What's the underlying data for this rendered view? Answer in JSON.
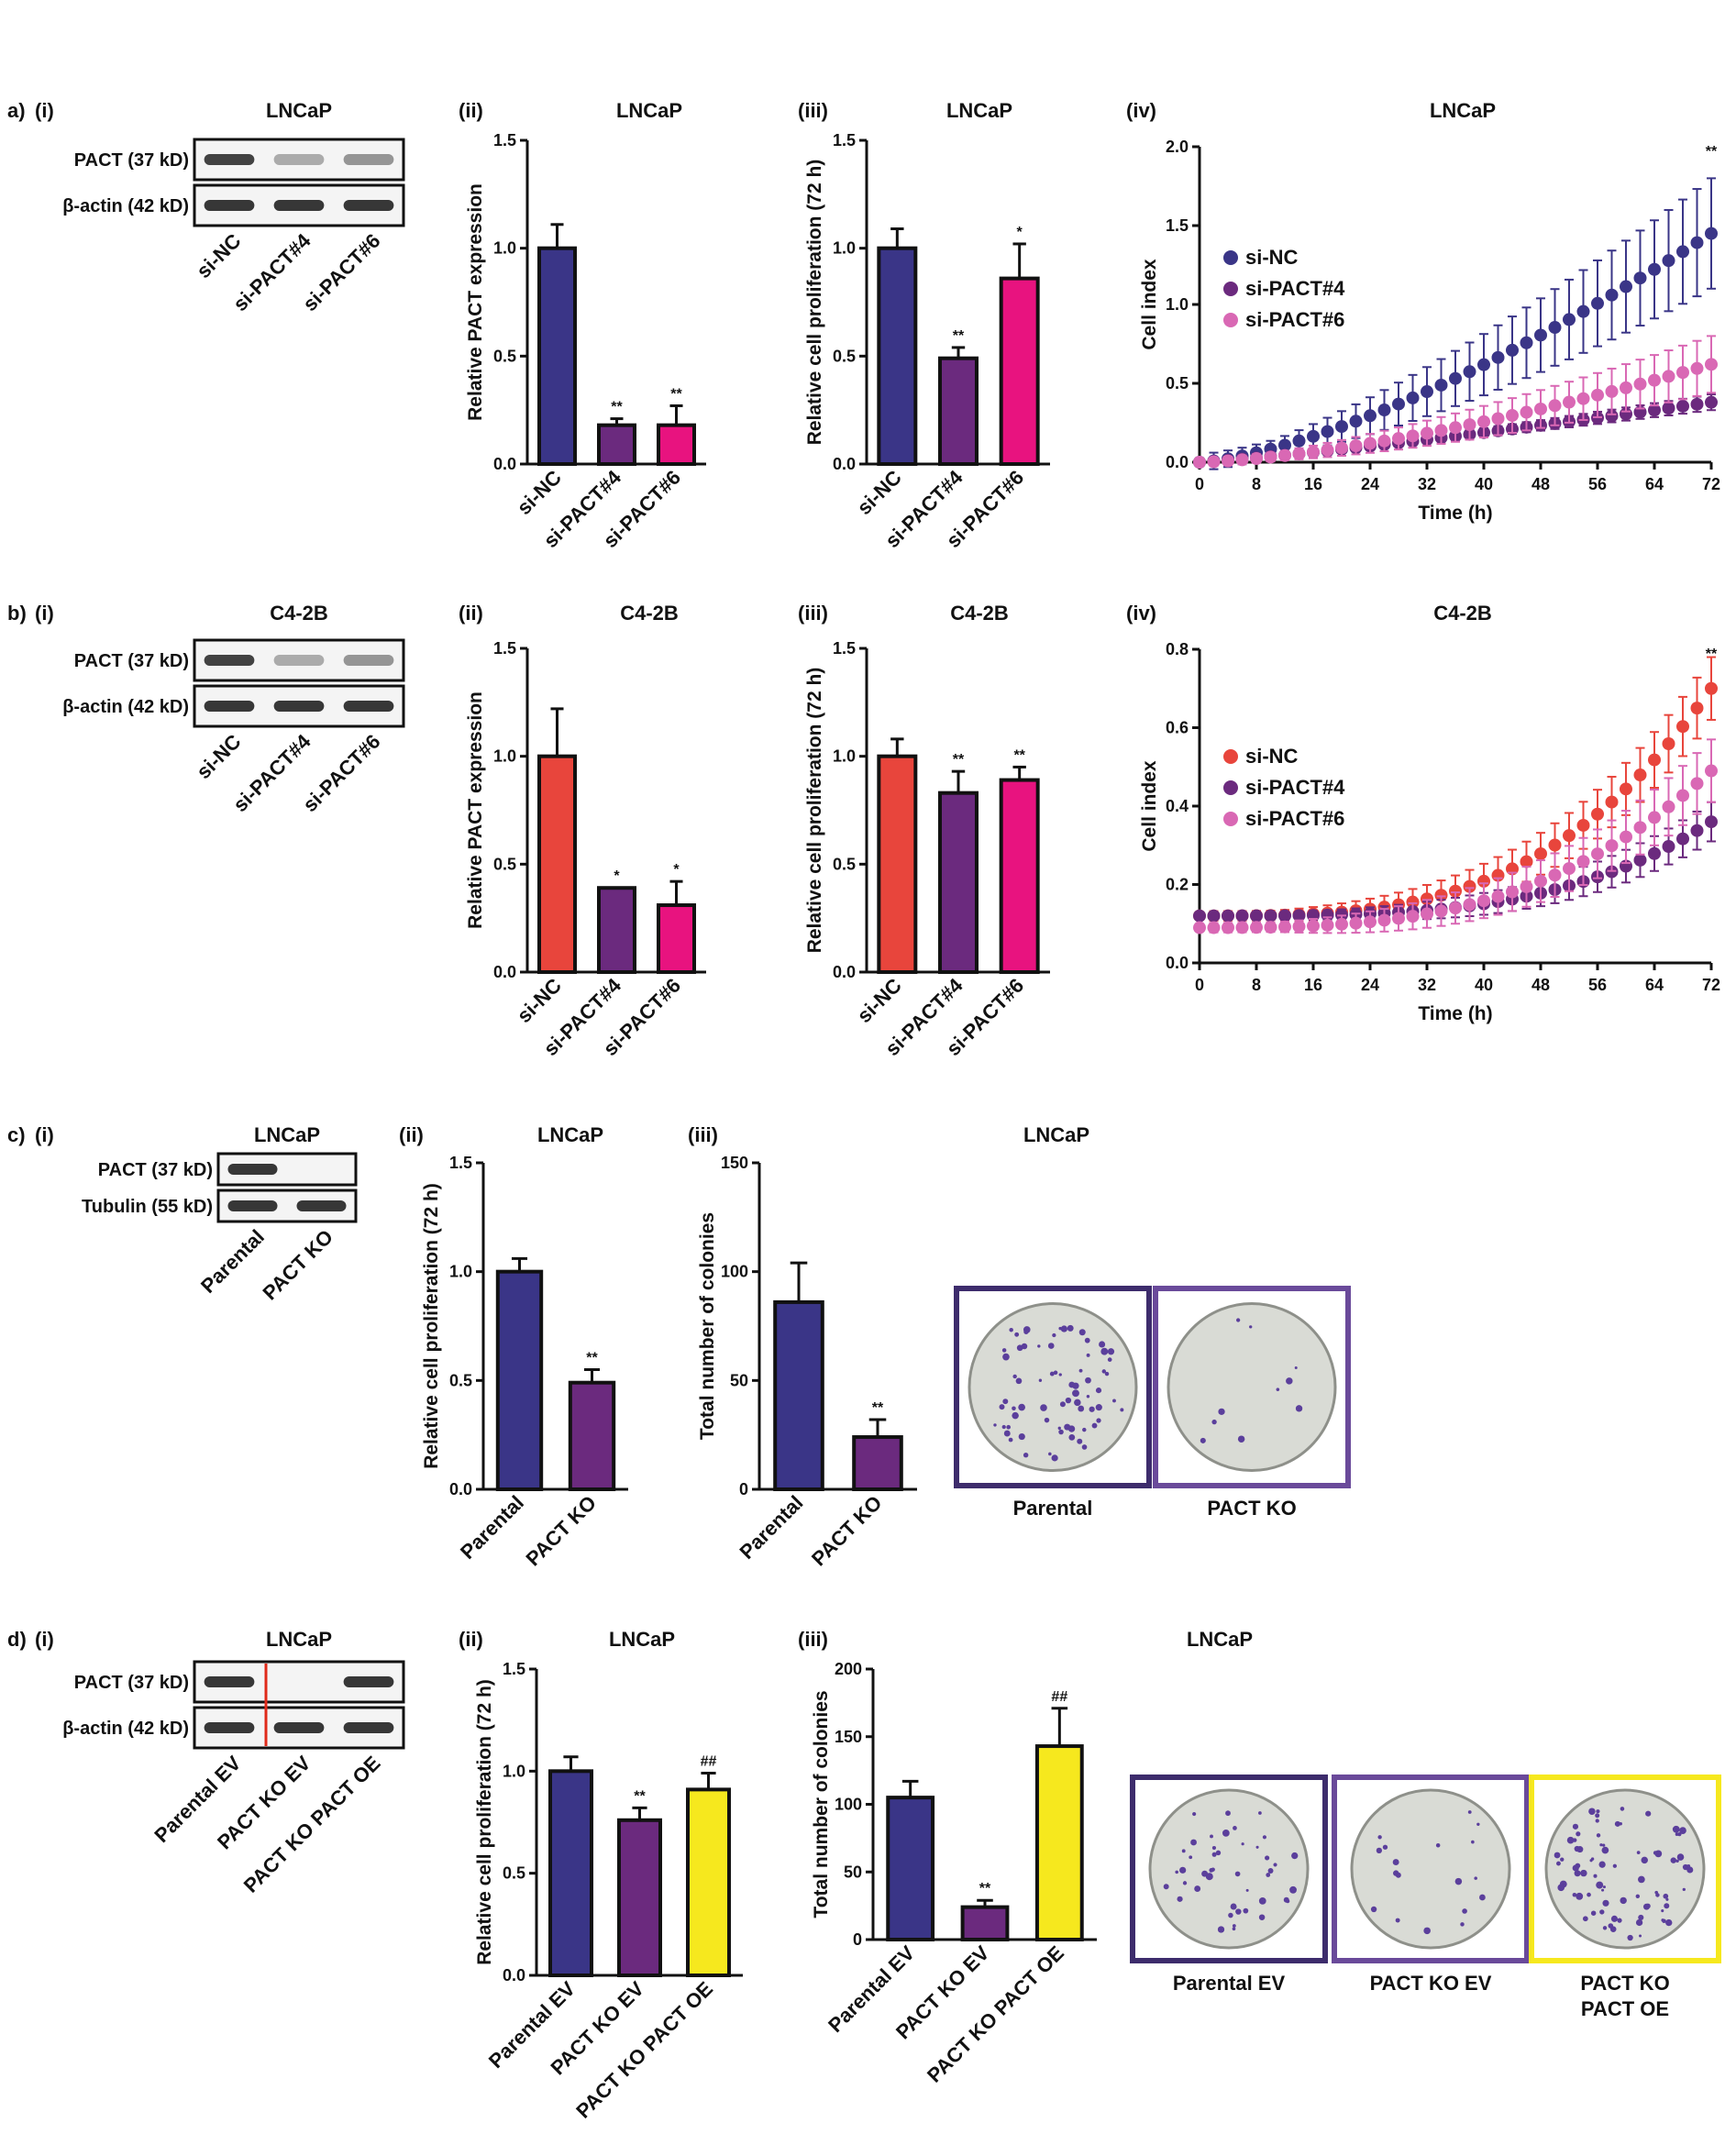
{
  "colors": {
    "navy": "#3a3587",
    "purple": "#6b2a7e",
    "magenta": "#e8137f",
    "red": "#e8453c",
    "pink": "#d968b4",
    "yellow": "#f6e81e",
    "box_purple": "#6a4a9a",
    "box_dark": "#3d2c6c",
    "box_yellow": "#f6e81e"
  },
  "panels": {
    "a": {
      "letter": "a)",
      "blot": {
        "tag": "(i)",
        "title": "LNCaP",
        "rows": [
          "PACT (37 kD)",
          "β-actin (42 kD)"
        ],
        "lanes": [
          "si-NC",
          "si-PACT#4",
          "si-PACT#6"
        ]
      },
      "ii": {
        "tag": "(ii)"
      },
      "iii": {
        "tag": "(iii)"
      },
      "iv": {
        "tag": "(iv)"
      }
    },
    "b": {
      "letter": "b)",
      "blot": {
        "tag": "(i)",
        "title": "C4-2B",
        "rows": [
          "PACT (37 kD)",
          "β-actin (42 kD)"
        ],
        "lanes": [
          "si-NC",
          "si-PACT#4",
          "si-PACT#6"
        ]
      },
      "ii": {
        "tag": "(ii)"
      },
      "iii": {
        "tag": "(iii)"
      },
      "iv": {
        "tag": "(iv)"
      }
    },
    "c": {
      "letter": "c)",
      "blot": {
        "tag": "(i)",
        "title": "LNCaP",
        "rows": [
          "PACT (37 kD)",
          "Tubulin (55 kD)"
        ],
        "lanes": [
          "Parental",
          "PACT KO"
        ]
      },
      "ii": {
        "tag": "(ii)"
      },
      "iii": {
        "tag": "(iii)"
      },
      "images": [
        "Parental",
        "PACT KO"
      ]
    },
    "d": {
      "letter": "d)",
      "blot": {
        "tag": "(i)",
        "title": "LNCaP",
        "rows": [
          "PACT (37 kD)",
          "β-actin (42 kD)"
        ],
        "lanes": [
          "Parental EV",
          "PACT KO EV",
          "PACT KO PACT OE"
        ]
      },
      "ii": {
        "tag": "(ii)"
      },
      "iii": {
        "tag": "(iii)"
      },
      "images": [
        "Parental EV",
        "PACT KO EV",
        "PACT KO\nPACT OE"
      ]
    }
  },
  "chart_data": [
    {
      "id": "a-ii",
      "type": "bar",
      "title": "LNCaP",
      "categories": [
        "si-NC",
        "si-PACT#4",
        "si-PACT#6"
      ],
      "values": [
        1.0,
        0.18,
        0.18
      ],
      "errors": [
        0.11,
        0.03,
        0.09
      ],
      "significance": [
        "",
        "**",
        "**"
      ],
      "colors": [
        "#3a3587",
        "#6b2a7e",
        "#e8137f"
      ],
      "ylabel": "Relative PACT expression",
      "ylim": [
        0,
        1.5
      ],
      "yticks": [
        "0.0",
        "0.5",
        "1.0",
        "1.5"
      ]
    },
    {
      "id": "a-iii",
      "type": "bar",
      "title": "LNCaP",
      "categories": [
        "si-NC",
        "si-PACT#4",
        "si-PACT#6"
      ],
      "values": [
        1.0,
        0.49,
        0.86
      ],
      "errors": [
        0.09,
        0.05,
        0.16
      ],
      "significance": [
        "",
        "**",
        "*"
      ],
      "colors": [
        "#3a3587",
        "#6b2a7e",
        "#e8137f"
      ],
      "ylabel": "Relative cell proliferation (72 h)",
      "ylim": [
        0,
        1.5
      ],
      "yticks": [
        "0.0",
        "0.5",
        "1.0",
        "1.5"
      ]
    },
    {
      "id": "a-iv",
      "type": "scatter",
      "title": "LNCaP",
      "xlabel": "Time (h)",
      "ylabel": "Cell index",
      "xlim": [
        0,
        72
      ],
      "ylim": [
        0,
        2.0
      ],
      "xticks": [
        "0",
        "8",
        "16",
        "24",
        "32",
        "40",
        "48",
        "56",
        "64",
        "72"
      ],
      "yticks": [
        "0.0",
        "0.5",
        "1.0",
        "1.5",
        "2.0"
      ],
      "annotation": "**",
      "legend": [
        "si-NC",
        "si-PACT#4",
        "si-PACT#6"
      ],
      "series": [
        {
          "name": "si-NC",
          "color": "#3a3587",
          "start": 0.0,
          "end": 1.45,
          "exp": 1.45,
          "err_end": 0.35
        },
        {
          "name": "si-PACT#4",
          "color": "#6b2a7e",
          "start": 0.0,
          "end": 0.38,
          "exp": 1.2,
          "err_end": 0.05
        },
        {
          "name": "si-PACT#6",
          "color": "#d968b4",
          "start": 0.0,
          "end": 0.62,
          "exp": 1.5,
          "err_end": 0.18
        }
      ]
    },
    {
      "id": "b-ii",
      "type": "bar",
      "title": "C4-2B",
      "categories": [
        "si-NC",
        "si-PACT#4",
        "si-PACT#6"
      ],
      "values": [
        1.0,
        0.39,
        0.31
      ],
      "errors": [
        0.22,
        0.0,
        0.11
      ],
      "significance": [
        "",
        "*",
        "*"
      ],
      "colors": [
        "#e8453c",
        "#6b2a7e",
        "#e8137f"
      ],
      "ylabel": "Relative PACT expression",
      "ylim": [
        0,
        1.5
      ],
      "yticks": [
        "0.0",
        "0.5",
        "1.0",
        "1.5"
      ]
    },
    {
      "id": "b-iii",
      "type": "bar",
      "title": "C4-2B",
      "categories": [
        "si-NC",
        "si-PACT#4",
        "si-PACT#6"
      ],
      "values": [
        1.0,
        0.83,
        0.89
      ],
      "errors": [
        0.08,
        0.1,
        0.06
      ],
      "significance": [
        "",
        "**",
        "**"
      ],
      "colors": [
        "#e8453c",
        "#6b2a7e",
        "#e8137f"
      ],
      "ylabel": "Relative cell proliferation (72 h)",
      "ylim": [
        0,
        1.5
      ],
      "yticks": [
        "0.0",
        "0.5",
        "1.0",
        "1.5"
      ]
    },
    {
      "id": "b-iv",
      "type": "scatter",
      "title": "C4-2B",
      "xlabel": "Time (h)",
      "ylabel": "Cell index",
      "xlim": [
        0,
        72
      ],
      "ylim": [
        0,
        0.8
      ],
      "xticks": [
        "0",
        "8",
        "16",
        "24",
        "32",
        "40",
        "48",
        "56",
        "64",
        "72"
      ],
      "yticks": [
        "0.0",
        "0.2",
        "0.4",
        "0.6",
        "0.8"
      ],
      "annotation": "**",
      "legend": [
        "si-NC",
        "si-PACT#4",
        "si-PACT#6"
      ],
      "series": [
        {
          "name": "si-NC",
          "color": "#e8453c",
          "start": 0.12,
          "end": 0.7,
          "exp": 3.2,
          "err_end": 0.08
        },
        {
          "name": "si-PACT#4",
          "color": "#6b2a7e",
          "start": 0.12,
          "end": 0.36,
          "exp": 3.5,
          "err_end": 0.05
        },
        {
          "name": "si-PACT#6",
          "color": "#d968b4",
          "start": 0.09,
          "end": 0.49,
          "exp": 3.0,
          "err_end": 0.08
        }
      ]
    },
    {
      "id": "c-ii",
      "type": "bar",
      "title": "LNCaP",
      "categories": [
        "Parental",
        "PACT KO"
      ],
      "values": [
        1.0,
        0.49
      ],
      "errors": [
        0.06,
        0.06
      ],
      "significance": [
        "",
        "**"
      ],
      "colors": [
        "#3a3587",
        "#6b2a7e"
      ],
      "ylabel": "Relative cell proliferation (72 h)",
      "ylim": [
        0,
        1.5
      ],
      "yticks": [
        "0.0",
        "0.5",
        "1.0",
        "1.5"
      ]
    },
    {
      "id": "c-iii",
      "type": "bar",
      "title": "LNCaP",
      "categories": [
        "Parental",
        "PACT KO"
      ],
      "values": [
        86,
        24
      ],
      "errors": [
        18,
        8
      ],
      "significance": [
        "",
        "**"
      ],
      "colors": [
        "#3a3587",
        "#6b2a7e"
      ],
      "ylabel": "Total number of colonies",
      "ylim": [
        0,
        150
      ],
      "yticks": [
        "0",
        "50",
        "100",
        "150"
      ]
    },
    {
      "id": "d-ii",
      "type": "bar",
      "title": "LNCaP",
      "categories": [
        "Parental EV",
        "PACT KO EV",
        "PACT KO PACT OE"
      ],
      "values": [
        1.0,
        0.76,
        0.91
      ],
      "errors": [
        0.07,
        0.06,
        0.08
      ],
      "significance": [
        "",
        "**",
        "##"
      ],
      "colors": [
        "#3a3587",
        "#6b2a7e",
        "#f6e81e"
      ],
      "ylabel": "Relative cell proliferation (72 h)",
      "ylim": [
        0,
        1.5
      ],
      "yticks": [
        "0.0",
        "0.5",
        "1.0",
        "1.5"
      ]
    },
    {
      "id": "d-iii",
      "type": "bar",
      "title": "LNCaP",
      "categories": [
        "Parental EV",
        "PACT KO EV",
        "PACT KO PACT OE"
      ],
      "values": [
        105,
        24,
        143
      ],
      "errors": [
        12,
        5,
        28
      ],
      "significance": [
        "",
        "**",
        "##"
      ],
      "colors": [
        "#3a3587",
        "#6b2a7e",
        "#f6e81e"
      ],
      "ylabel": "Total number of colonies",
      "ylim": [
        0,
        200
      ],
      "yticks": [
        "0",
        "50",
        "100",
        "150",
        "200"
      ]
    }
  ]
}
